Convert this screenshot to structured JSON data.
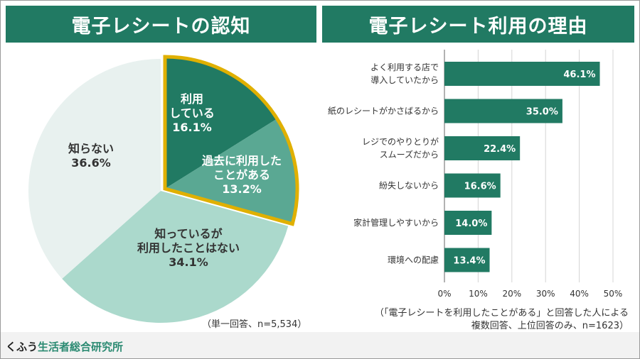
{
  "left_panel": {
    "title": "電子レシートの認知",
    "note": "（単一回答、n=5,534）"
  },
  "right_panel": {
    "title": "電子レシート利用の理由",
    "note_line1": "（「電子レシートを利用したことがある」と回答した人による",
    "note_line2": "複数回答、上位回答のみ、n=1623）"
  },
  "footer": {
    "brand_part1": "くふう",
    "brand_part2": "生活者総合研究所"
  },
  "colors": {
    "header": "#217a63",
    "bar": "#217a63",
    "highlight_outline": "#e0b000"
  },
  "chart_data": [
    {
      "type": "pie",
      "start": "12 o'clock",
      "direction": "clockwise",
      "slices": [
        {
          "label_lines": [
            "利用",
            "している"
          ],
          "value": 16.1,
          "value_label": "16.1%",
          "color": "#217a63",
          "text_color": "#ffffff",
          "highlighted": true
        },
        {
          "label_lines": [
            "過去に利用した",
            "ことがある"
          ],
          "value": 13.2,
          "value_label": "13.2%",
          "color": "#5aa893",
          "text_color": "#ffffff",
          "highlighted": true
        },
        {
          "label_lines": [
            "知っているが",
            "利用したことはない"
          ],
          "value": 34.1,
          "value_label": "34.1%",
          "color": "#abd9cc",
          "text_color": "#333333",
          "highlighted": false
        },
        {
          "label_lines": [
            "知らない"
          ],
          "value": 36.6,
          "value_label": "36.6%",
          "color": "#e8f1ef",
          "text_color": "#333333",
          "highlighted": false
        }
      ]
    },
    {
      "type": "bar",
      "orientation": "horizontal",
      "categories": [
        [
          "よく利用する店で",
          "導入していたから"
        ],
        [
          "紙のレシートがかさばるから"
        ],
        [
          "レジでのやりとりが",
          "スムーズだから"
        ],
        [
          "紛失しないから"
        ],
        [
          "家計管理しやすいから"
        ],
        [
          "環境への配慮"
        ]
      ],
      "values": [
        46.1,
        35.0,
        22.4,
        16.6,
        14.0,
        13.4
      ],
      "value_labels": [
        "46.1%",
        "35.0%",
        "22.4%",
        "16.6%",
        "14.0%",
        "13.4%"
      ],
      "xlim": [
        0,
        50
      ],
      "ticks": [
        "0%",
        "10%",
        "20%",
        "30%",
        "40%",
        "50%"
      ],
      "grid": true
    }
  ]
}
